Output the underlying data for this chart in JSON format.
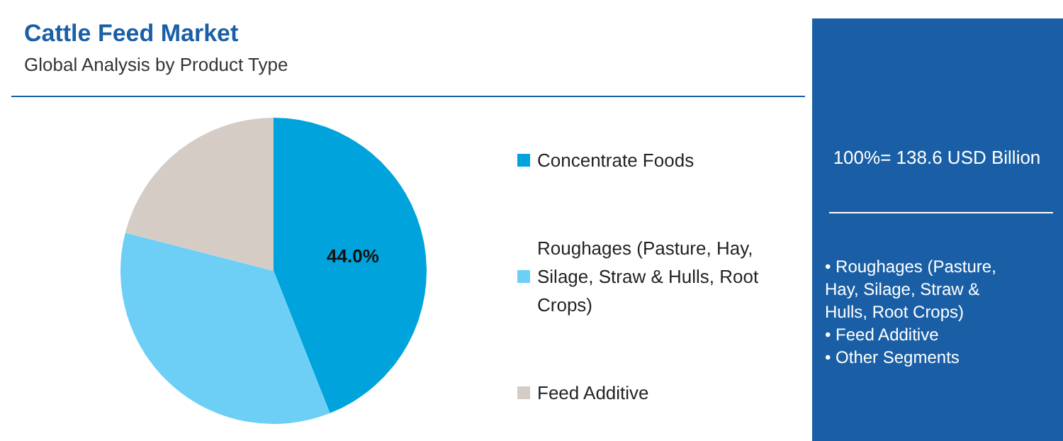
{
  "chart_data": {
    "type": "pie",
    "title": "Cattle Feed Market",
    "subtitle": "Global Analysis by Product Type",
    "categories": [
      "Concentrate Foods",
      "Roughages (Pasture, Hay, Silage, Straw & Hulls, Root Crops)",
      "Feed Additive"
    ],
    "values": [
      44,
      35,
      21
    ],
    "colors": [
      "#00a3dc",
      "#6dcff6",
      "#d5ccc6"
    ],
    "value_labels": [
      "44.0%",
      null,
      null
    ],
    "legend": "right",
    "annotations": [
      "100%= 138.6 USD Billion",
      "• Roughages (Pasture, Hay, Silage, Straw & Hulls, Root Crops)",
      "• Feed Additive",
      "• Other Segments"
    ]
  }
}
